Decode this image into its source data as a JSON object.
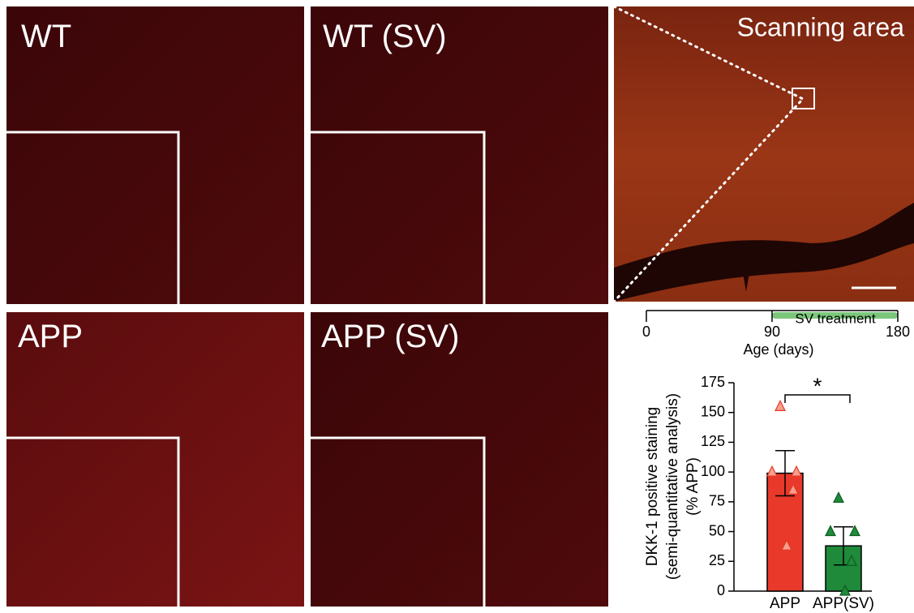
{
  "panels": [
    {
      "label": "WT"
    },
    {
      "label": "WT (SV)"
    },
    {
      "label": "APP"
    },
    {
      "label": "APP (SV)"
    }
  ],
  "scanning_area": {
    "label": "Scanning area"
  },
  "timeline": {
    "ticks": [
      0,
      90,
      180
    ],
    "treatment_label": "SV treatment",
    "treatment_start": 90,
    "treatment_end": 180,
    "xlabel": "Age (days)"
  },
  "chart_data": {
    "type": "bar",
    "ylabel": [
      "DKK-1 positive staining",
      "(semi-quantitative analysis)",
      "(% APP)"
    ],
    "categories": [
      "APP",
      "APP(SV)"
    ],
    "values": [
      99,
      38
    ],
    "errors": [
      19,
      16
    ],
    "points": [
      [
        155,
        100,
        100,
        85,
        38
      ],
      [
        78,
        50,
        50,
        25,
        0
      ]
    ],
    "colors": [
      "#e8392b",
      "#1e8a3a"
    ],
    "annotation": "*",
    "ylim": [
      0,
      175
    ],
    "yticks": [
      0,
      25,
      50,
      75,
      100,
      125,
      150,
      175
    ]
  }
}
